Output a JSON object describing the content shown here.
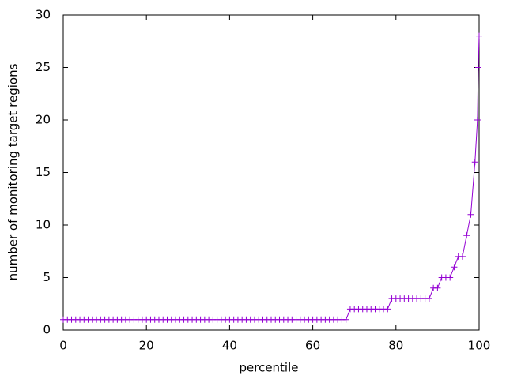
{
  "chart_data": {
    "type": "line",
    "xlabel": "percentile",
    "ylabel": "number of monitoring target regions",
    "color": "#9400d3",
    "x": [
      0,
      1,
      2,
      3,
      4,
      5,
      6,
      7,
      8,
      9,
      10,
      11,
      12,
      13,
      14,
      15,
      16,
      17,
      18,
      19,
      20,
      21,
      22,
      23,
      24,
      25,
      26,
      27,
      28,
      29,
      30,
      31,
      32,
      33,
      34,
      35,
      36,
      37,
      38,
      39,
      40,
      41,
      42,
      43,
      44,
      45,
      46,
      47,
      48,
      49,
      50,
      51,
      52,
      53,
      54,
      55,
      56,
      57,
      58,
      59,
      60,
      61,
      62,
      63,
      64,
      65,
      66,
      67,
      68,
      69,
      70,
      71,
      72,
      73,
      74,
      75,
      76,
      77,
      78,
      79,
      80,
      81,
      82,
      83,
      84,
      85,
      86,
      87,
      88,
      89,
      90,
      91,
      92,
      93,
      94,
      95,
      96,
      97,
      98,
      99,
      99.6,
      99.8,
      100
    ],
    "values": [
      1,
      1,
      1,
      1,
      1,
      1,
      1,
      1,
      1,
      1,
      1,
      1,
      1,
      1,
      1,
      1,
      1,
      1,
      1,
      1,
      1,
      1,
      1,
      1,
      1,
      1,
      1,
      1,
      1,
      1,
      1,
      1,
      1,
      1,
      1,
      1,
      1,
      1,
      1,
      1,
      1,
      1,
      1,
      1,
      1,
      1,
      1,
      1,
      1,
      1,
      1,
      1,
      1,
      1,
      1,
      1,
      1,
      1,
      1,
      1,
      1,
      1,
      1,
      1,
      1,
      1,
      1,
      1,
      1,
      2,
      2,
      2,
      2,
      2,
      2,
      2,
      2,
      2,
      2,
      3,
      3,
      3,
      3,
      3,
      3,
      3,
      3,
      3,
      3,
      4,
      4,
      5,
      5,
      5,
      6,
      7,
      7,
      9,
      11,
      16,
      20,
      25,
      28
    ],
    "xlim": [
      0,
      100
    ],
    "xticks": [
      0,
      20,
      40,
      60,
      80,
      100
    ],
    "ylim": [
      0,
      30
    ],
    "yticks": [
      0,
      5,
      10,
      15,
      20,
      25,
      30
    ]
  }
}
